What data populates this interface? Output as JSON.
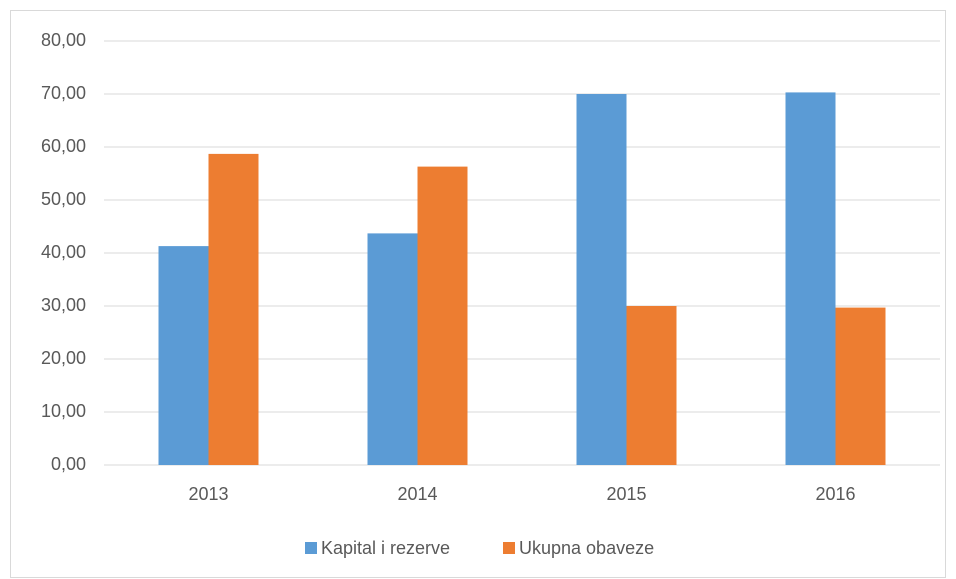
{
  "chart_data": {
    "type": "bar",
    "categories": [
      "2013",
      "2014",
      "2015",
      "2016"
    ],
    "series": [
      {
        "name": "Kapital i rezerve",
        "color": "#5b9bd5",
        "values": [
          41.3,
          43.7,
          70.0,
          70.3
        ]
      },
      {
        "name": "Ukupna obaveze",
        "color": "#ed7d31",
        "values": [
          58.7,
          56.3,
          30.0,
          29.7
        ]
      }
    ],
    "ylim": [
      0,
      80
    ],
    "yticks": [
      {
        "value": 0,
        "label": "0,00"
      },
      {
        "value": 10,
        "label": "10,00"
      },
      {
        "value": 20,
        "label": "20,00"
      },
      {
        "value": 30,
        "label": "30,00"
      },
      {
        "value": 40,
        "label": "40,00"
      },
      {
        "value": 50,
        "label": "50,00"
      },
      {
        "value": 60,
        "label": "60,00"
      },
      {
        "value": 70,
        "label": "70,00"
      },
      {
        "value": 80,
        "label": "80,00"
      }
    ],
    "grid": true,
    "legend": "bottom"
  }
}
